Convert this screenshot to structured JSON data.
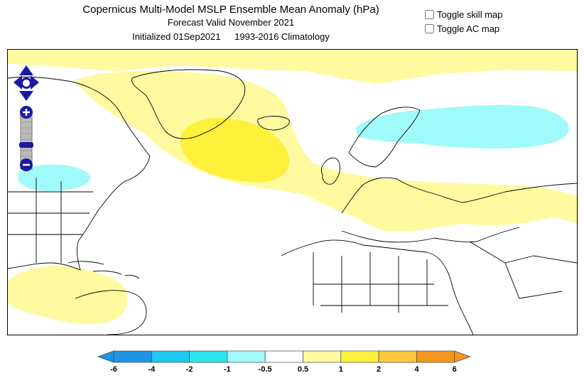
{
  "header": {
    "title": "Copernicus Multi-Model MSLP Ensemble Mean Anomaly (hPa)",
    "subtitle": "Forecast Valid November 2021",
    "initialized": "Initialized 01Sep2021",
    "climatology": "1993-2016 Climatology"
  },
  "toggles": [
    {
      "label": "Toggle skill map",
      "checked": false
    },
    {
      "label": "Toggle AC map",
      "checked": false
    }
  ],
  "nav": {
    "pan_up_icon": "arrow-up-icon",
    "pan_down_icon": "arrow-down-icon",
    "pan_left_icon": "arrow-left-icon",
    "pan_right_icon": "arrow-right-icon",
    "zoom_in_icon": "plus-icon",
    "zoom_out_icon": "minus-icon"
  },
  "colorbar": {
    "ticks": [
      "-6",
      "-4",
      "-2",
      "-1",
      "-0.5",
      "0.5",
      "1",
      "2",
      "4",
      "6"
    ],
    "colors": [
      "#1e96e6",
      "#1ec8f0",
      "#28e6f0",
      "#a0fafa",
      "#ffffff",
      "#fffaa0",
      "#fff03c",
      "#ffc83c",
      "#f5961e"
    ]
  }
}
